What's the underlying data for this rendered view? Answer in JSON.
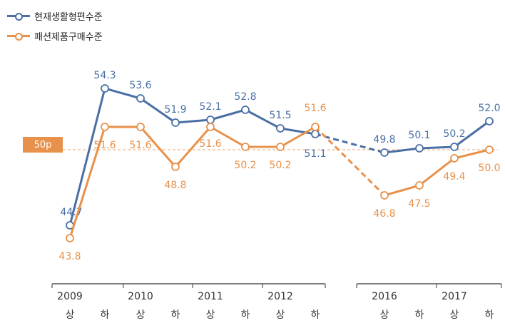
{
  "chart_data": {
    "type": "line",
    "title": "",
    "reference_label": "50p",
    "reference_value": 50,
    "ylim": [
      42,
      56
    ],
    "colors": {
      "series1": "#4a6fa5",
      "series2": "#e8914a",
      "reference": "#f0a46a"
    },
    "legend_position": "top-left",
    "groups": [
      {
        "x": [
          0,
          1,
          2,
          3,
          4,
          5,
          6,
          7
        ],
        "tick_labels": [
          "상",
          "하",
          "상",
          "하",
          "상",
          "하",
          "상",
          "하"
        ],
        "years": [
          "2009",
          "2010",
          "2011",
          "2012"
        ]
      },
      {
        "x": [
          8,
          9,
          10,
          11
        ],
        "tick_labels": [
          "상",
          "하",
          "상",
          "하"
        ],
        "years": [
          "2016",
          "2017"
        ]
      }
    ],
    "series": [
      {
        "name": "현재생활형편수준",
        "values": [
          44.7,
          54.3,
          53.6,
          51.9,
          52.1,
          52.8,
          51.5,
          51.1,
          49.8,
          50.1,
          50.2,
          52.0
        ]
      },
      {
        "name": "패션제품구매수준",
        "values": [
          43.8,
          51.6,
          51.6,
          48.8,
          51.6,
          50.2,
          50.2,
          51.6,
          46.8,
          47.5,
          49.4,
          50.0
        ]
      }
    ],
    "gap_after_index": 7
  }
}
